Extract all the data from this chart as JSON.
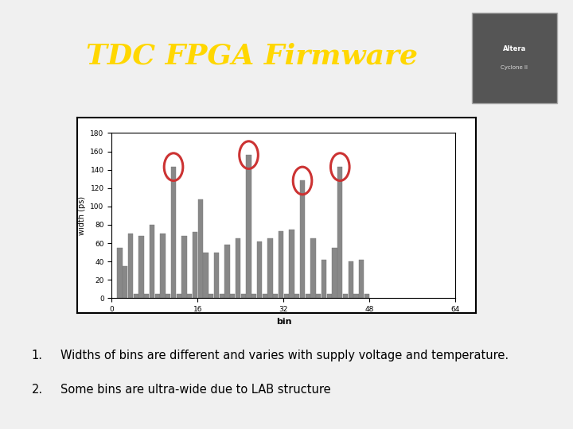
{
  "title": "TDC FPGA Firmware",
  "title_color": "#FFD700",
  "bg_color": "#000000",
  "slide_bg": "#F0F0F0",
  "chart_bg": "#FFFFFF",
  "xlabel": "bin",
  "ylabel": "width (ps)",
  "ylim": [
    0,
    180
  ],
  "xlim": [
    0,
    64
  ],
  "xticks": [
    0,
    16,
    32,
    48,
    64
  ],
  "yticks": [
    0,
    20,
    40,
    60,
    80,
    100,
    120,
    140,
    160,
    180
  ],
  "bullet1": "Widths of bins are different and varies with supply voltage and temperature.",
  "bullet2": "Some bins are ultra-wide due to LAB structure",
  "bin_values": [
    0,
    55,
    35,
    70,
    5,
    68,
    5,
    80,
    5,
    70,
    5,
    143,
    5,
    68,
    5,
    72,
    108,
    50,
    5,
    50,
    5,
    58,
    5,
    65,
    5,
    156,
    5,
    62,
    5,
    65,
    5,
    73,
    5,
    75,
    5,
    128,
    5,
    65,
    5,
    42,
    5,
    55,
    143,
    5,
    40,
    5,
    42,
    5,
    0,
    0,
    0,
    0,
    0,
    0,
    0,
    0,
    0,
    0,
    0,
    0,
    0,
    0,
    0,
    0
  ],
  "circled_bins": [
    11,
    25,
    35,
    42
  ],
  "circle_color": "#CC3333",
  "bar_color": "#888888",
  "chart_border_color": "#000000"
}
